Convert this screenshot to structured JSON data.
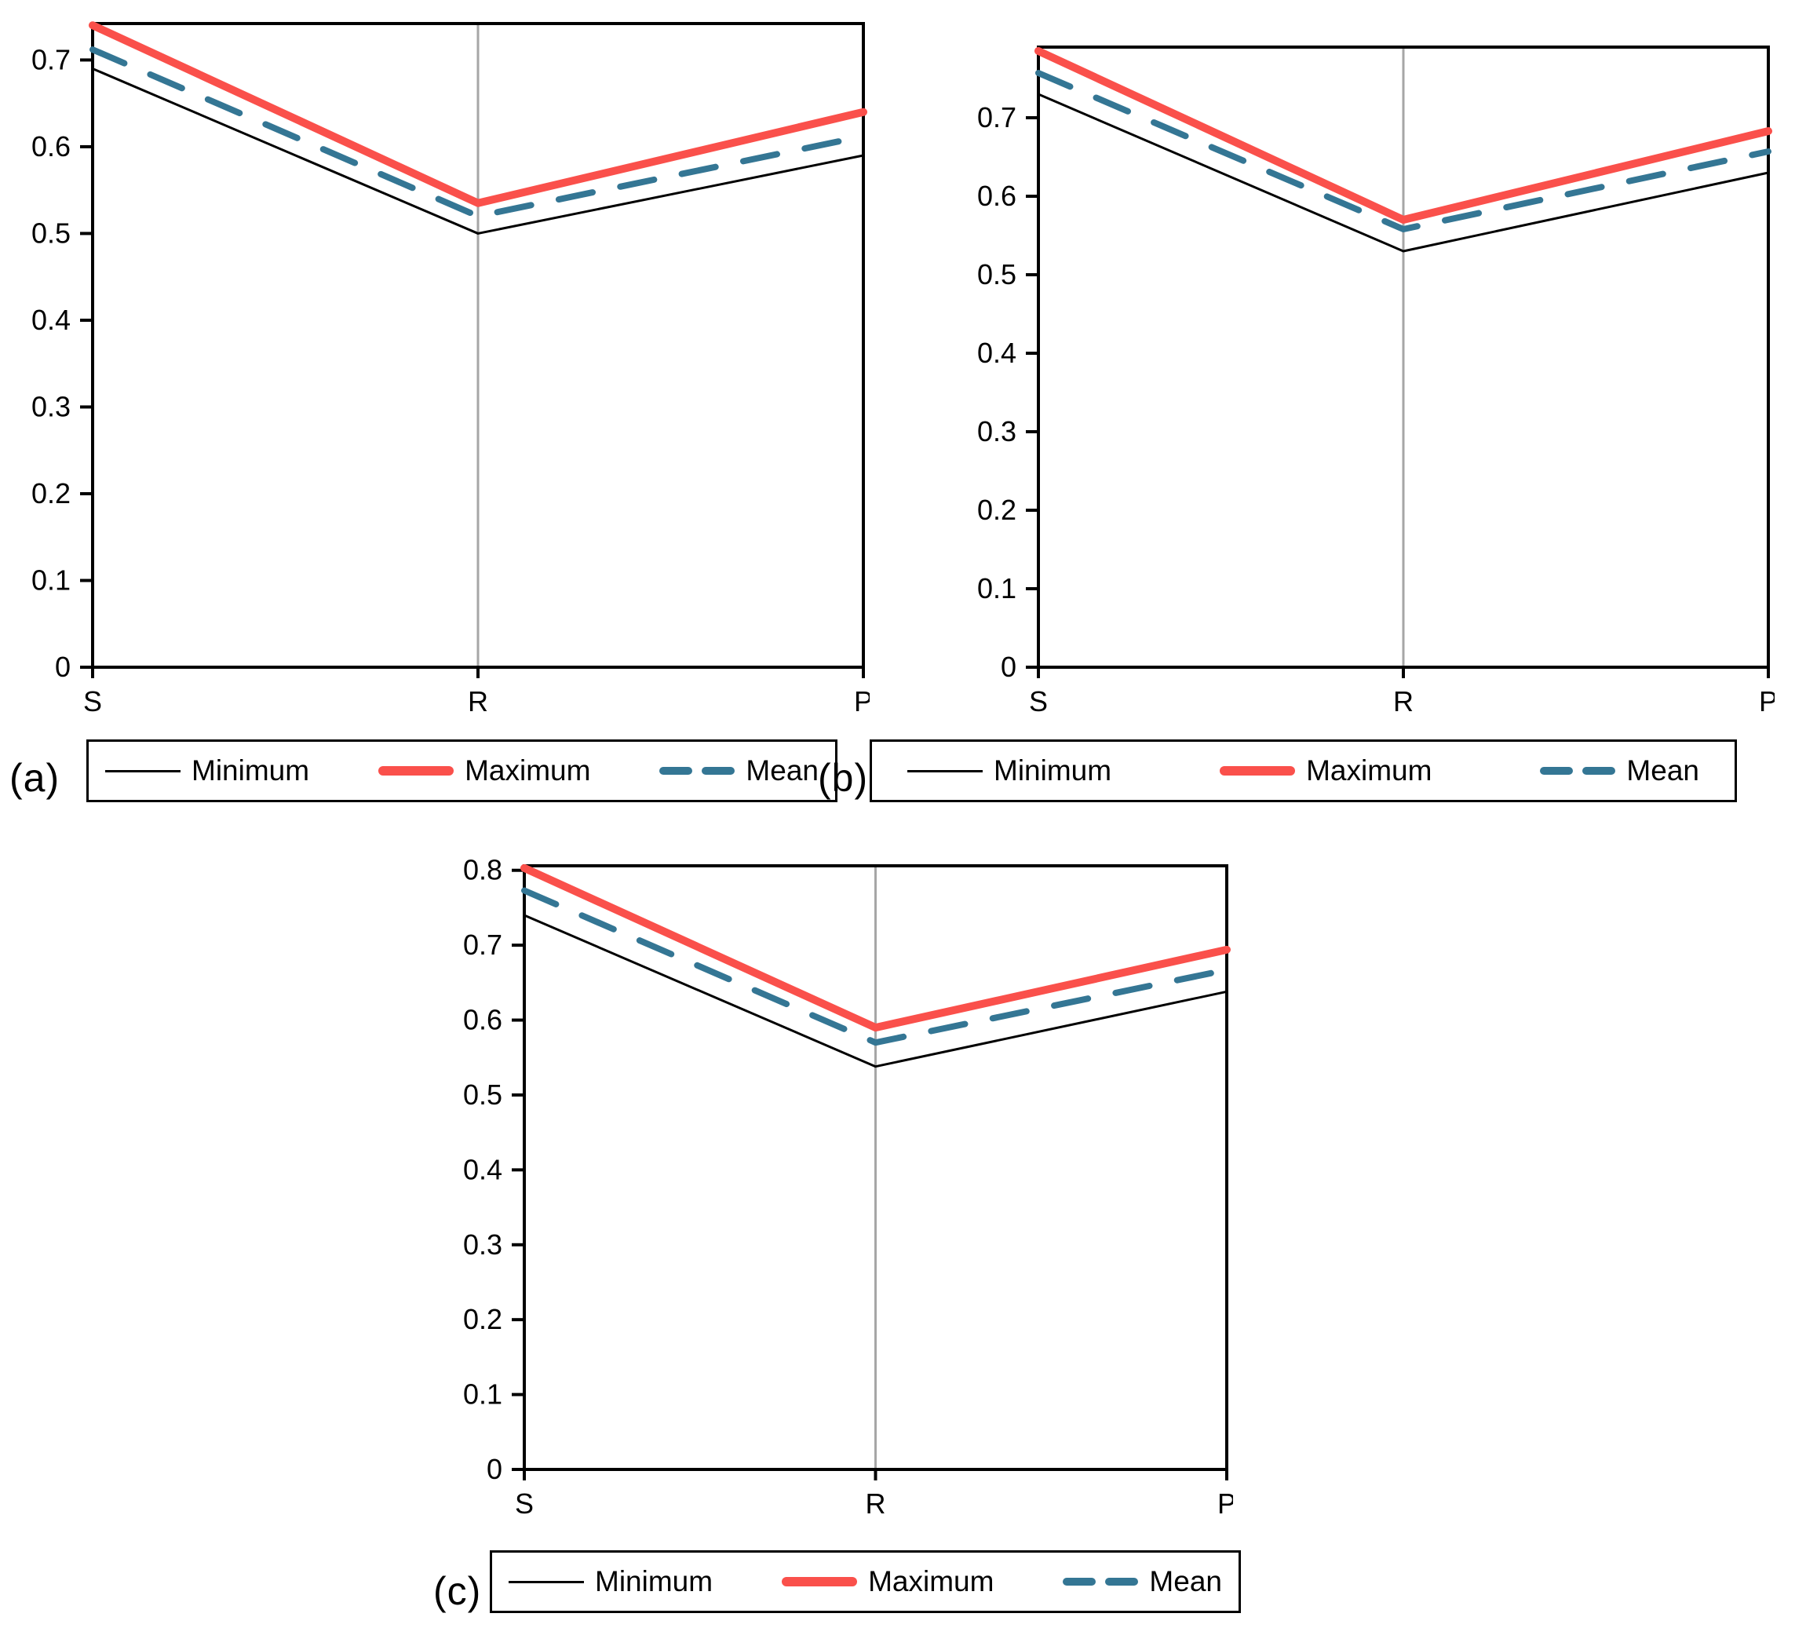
{
  "figure": {
    "background": "#ffffff",
    "panel_labels": [
      "(a)",
      "(b)",
      "(c)"
    ]
  },
  "colors": {
    "minimum": "#000000",
    "maximum": "#FA504B",
    "mean": "#347694",
    "gridline": "#A6A6A6",
    "axis": "#000000",
    "tick_text": "#000000"
  },
  "legend": {
    "position": "bottom",
    "items": [
      {
        "series": "minimum",
        "label": "Minimum"
      },
      {
        "series": "maximum",
        "label": "Maximum"
      },
      {
        "series": "mean",
        "label": "Mean"
      }
    ]
  },
  "chart_data": [
    {
      "panel": "(a)",
      "type": "line",
      "categories": [
        "S",
        "R",
        "P"
      ],
      "series": [
        {
          "name": "Minimum",
          "key": "minimum",
          "values": [
            0.69,
            0.5,
            0.59
          ]
        },
        {
          "name": "Maximum",
          "key": "maximum",
          "values": [
            0.74,
            0.535,
            0.64
          ]
        },
        {
          "name": "Mean",
          "key": "mean",
          "values": [
            0.712,
            0.52,
            0.612
          ]
        }
      ],
      "ylim": [
        0,
        0.742
      ],
      "yticks": [
        0,
        0.1,
        0.2,
        0.3,
        0.4,
        0.5,
        0.6,
        0.7
      ],
      "ytick_labels": [
        "0",
        "0.1",
        "0.2",
        "0.3",
        "0.4",
        "0.5",
        "0.6",
        "0.7"
      ],
      "grid": "vertical-at-middle-category",
      "legend_position": "bottom"
    },
    {
      "panel": "(b)",
      "type": "line",
      "categories": [
        "S",
        "R",
        "P"
      ],
      "series": [
        {
          "name": "Minimum",
          "key": "minimum",
          "values": [
            0.73,
            0.53,
            0.63
          ]
        },
        {
          "name": "Maximum",
          "key": "maximum",
          "values": [
            0.785,
            0.57,
            0.683
          ]
        },
        {
          "name": "Mean",
          "key": "mean",
          "values": [
            0.757,
            0.558,
            0.657
          ]
        }
      ],
      "ylim": [
        0,
        0.79
      ],
      "yticks": [
        0,
        0.1,
        0.2,
        0.3,
        0.4,
        0.5,
        0.6,
        0.7
      ],
      "ytick_labels": [
        "0",
        "0.1",
        "0.2",
        "0.3",
        "0.4",
        "0.5",
        "0.6",
        "0.7"
      ],
      "grid": "vertical-at-middle-category",
      "legend_position": "bottom"
    },
    {
      "panel": "(c)",
      "type": "line",
      "categories": [
        "S",
        "R",
        "P"
      ],
      "series": [
        {
          "name": "Minimum",
          "key": "minimum",
          "values": [
            0.74,
            0.538,
            0.638
          ]
        },
        {
          "name": "Maximum",
          "key": "maximum",
          "values": [
            0.803,
            0.59,
            0.694
          ]
        },
        {
          "name": "Mean",
          "key": "mean",
          "values": [
            0.773,
            0.57,
            0.667
          ]
        }
      ],
      "ylim": [
        0,
        0.806
      ],
      "yticks": [
        0,
        0.1,
        0.2,
        0.3,
        0.4,
        0.5,
        0.6,
        0.7,
        0.8
      ],
      "ytick_labels": [
        "0",
        "0.1",
        "0.2",
        "0.3",
        "0.4",
        "0.5",
        "0.6",
        "0.7",
        "0.8"
      ],
      "grid": "vertical-at-middle-category",
      "legend_position": "bottom"
    }
  ]
}
